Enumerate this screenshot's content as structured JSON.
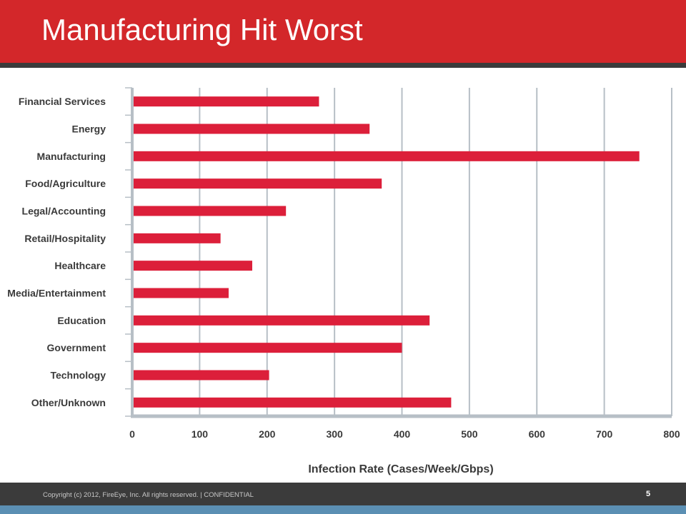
{
  "slide": {
    "title": "Manufacturing Hit Worst",
    "copyright": "Copyright (c) 2012, FireEye, Inc. All rights reserved. | CONFIDENTIAL",
    "page_number": "5"
  },
  "colors": {
    "title_bar": "#d3272a",
    "bar": "#dc1f3a",
    "dark_band": "#3b3b3b",
    "footer_accent": "#5b8fb3",
    "grid": "#b7bfc6"
  },
  "chart_data": {
    "type": "bar",
    "orientation": "horizontal",
    "title": "",
    "xlabel": "Infection Rate (Cases/Week/Gbps)",
    "ylabel": "",
    "xlim": [
      0,
      800
    ],
    "xticks": [
      "0",
      "100",
      "200",
      "300",
      "400",
      "500",
      "600",
      "700",
      "800"
    ],
    "grid": true,
    "categories": [
      "Financial Services",
      "Energy",
      "Manufacturing",
      "Food/Agriculture",
      "Legal/Accounting",
      "Retail/Hospitality",
      "Healthcare",
      "Media/Entertainment",
      "Education",
      "Government",
      "Technology",
      "Other/Unknown"
    ],
    "values": [
      277,
      352,
      752,
      370,
      228,
      131,
      178,
      143,
      441,
      400,
      203,
      473
    ]
  }
}
